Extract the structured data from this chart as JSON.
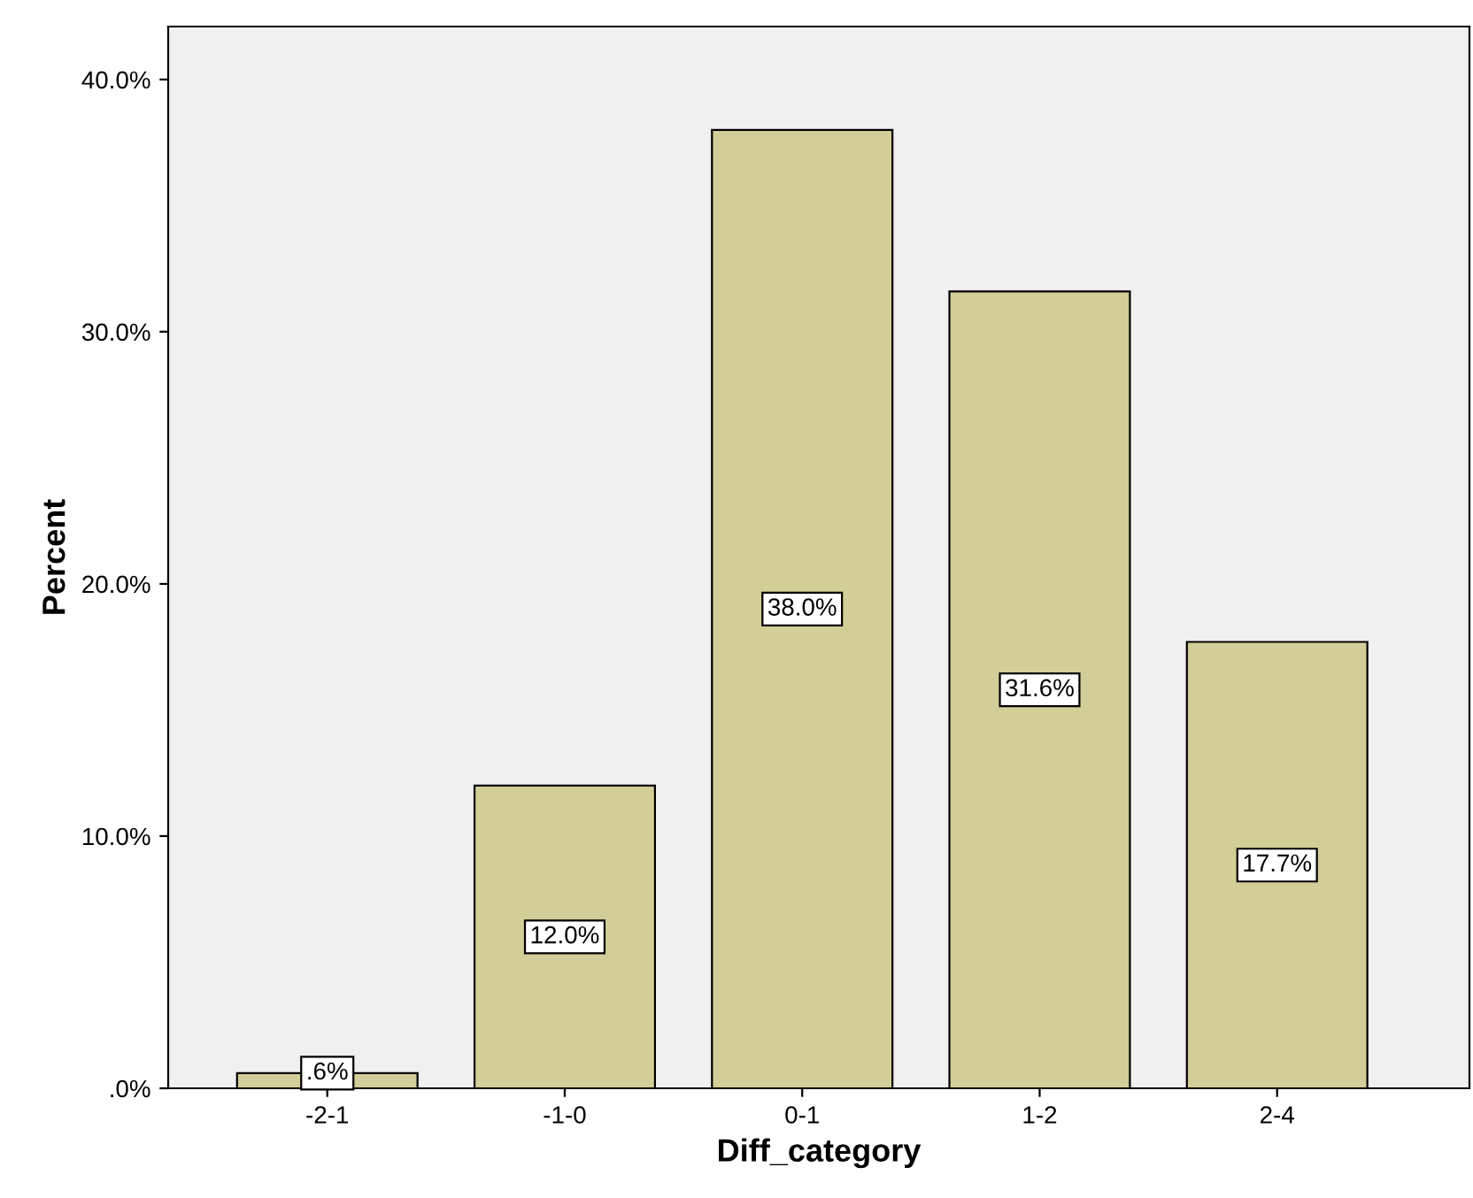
{
  "chart_data": {
    "type": "bar",
    "xlabel": "Diff_category",
    "ylabel": "Percent",
    "categories": [
      "-2-1",
      "-1-0",
      "0-1",
      "1-2",
      "2-4"
    ],
    "values": [
      0.6,
      12.0,
      38.0,
      31.6,
      17.7
    ],
    "value_labels": [
      ".6%",
      "12.0%",
      "38.0%",
      "31.6%",
      "17.7%"
    ],
    "color": "#d3ce97",
    "ylim": [
      0,
      42.1
    ],
    "yticks": [
      {
        "value": 0,
        "label": ".0%"
      },
      {
        "value": 10,
        "label": "10.0%"
      },
      {
        "value": 20,
        "label": "20.0%"
      },
      {
        "value": 30,
        "label": "30.0%"
      },
      {
        "value": 40,
        "label": "40.0%"
      }
    ],
    "grid": false
  }
}
